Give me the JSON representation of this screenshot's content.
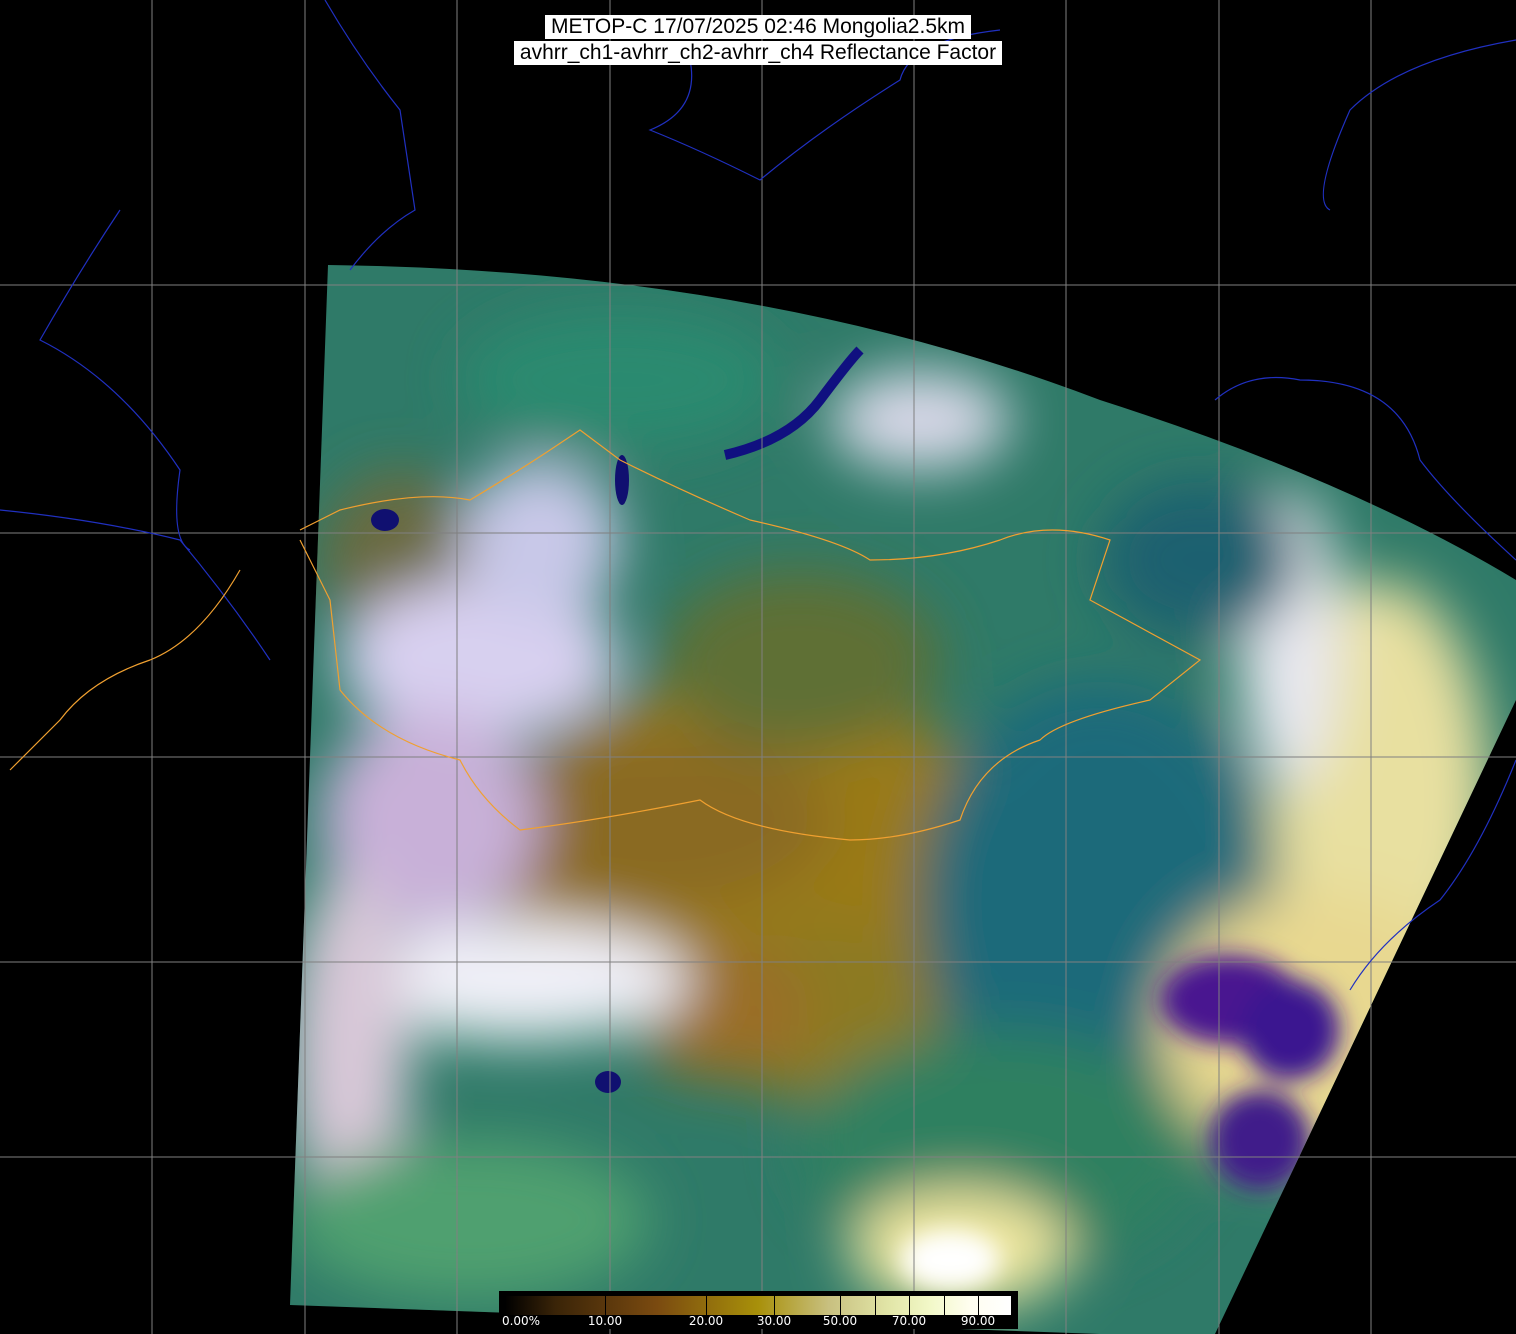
{
  "title": {
    "line1": "METOP-C 17/07/2025 02:46 Mongolia2.5km",
    "line2": "avhrr_ch1-avhrr_ch2-avhrr_ch4 Reflectance Factor"
  },
  "colorbar": {
    "labels": [
      "0.00%",
      "10.00",
      "20.00",
      "30.00",
      "50.00",
      "70.00",
      "90.00"
    ],
    "colors": [
      "#000000",
      "#7a4a10",
      "#a8900a",
      "#c8c080",
      "#e2e6a8",
      "#f2f8c8",
      "#ffffff"
    ]
  },
  "map": {
    "grid_color": "#808080",
    "coastline_color": "#2030c0",
    "border_color": "#f0a030"
  }
}
